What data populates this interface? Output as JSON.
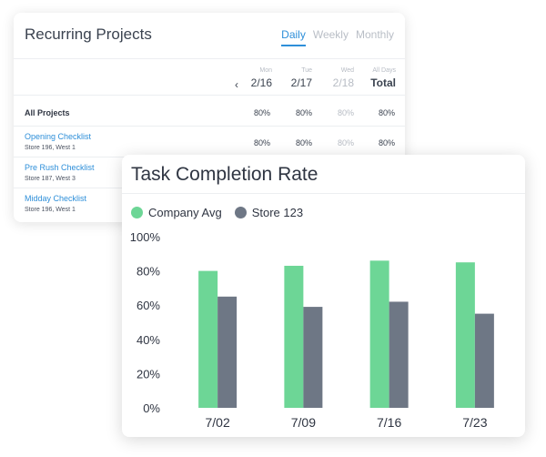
{
  "recurring": {
    "title": "Recurring Projects",
    "tabs": [
      {
        "label": "Daily",
        "active": true
      },
      {
        "label": "Weekly",
        "active": false
      },
      {
        "label": "Monthly",
        "active": false
      }
    ],
    "nav_prev": "‹",
    "columns": [
      {
        "day": "Mon",
        "date": "2/16"
      },
      {
        "day": "Tue",
        "date": "2/17"
      },
      {
        "day": "Wed",
        "date": "2/18"
      },
      {
        "day": "All Days",
        "date": "Total"
      }
    ],
    "rows": [
      {
        "name": "All Projects",
        "sub": "",
        "values": [
          "80%",
          "80%",
          "80%",
          "80%"
        ]
      },
      {
        "name": "Opening Checklist",
        "sub": "Store 196, West 1",
        "values": [
          "80%",
          "80%",
          "80%",
          "80%"
        ]
      },
      {
        "name": "Pre Rush Checklist",
        "sub": "Store 187, West 3",
        "values": []
      },
      {
        "name": "Midday Checklist",
        "sub": "Store 196, West 1",
        "values": []
      }
    ]
  },
  "completion": {
    "title": "Task Completion Rate"
  },
  "chart_data": {
    "type": "bar",
    "title": "Task Completion Rate",
    "categories": [
      "7/02",
      "7/09",
      "7/16",
      "7/23"
    ],
    "series": [
      {
        "name": "Company Avg",
        "color": "#6dd696",
        "values": [
          80,
          83,
          86,
          85
        ]
      },
      {
        "name": "Store 123",
        "color": "#6e7785",
        "values": [
          65,
          59,
          62,
          55
        ]
      }
    ],
    "y_ticks": [
      "0%",
      "20%",
      "40%",
      "60%",
      "80%",
      "100%"
    ],
    "ylim": [
      0,
      100
    ],
    "grid": false,
    "legend_position": "top-left"
  }
}
